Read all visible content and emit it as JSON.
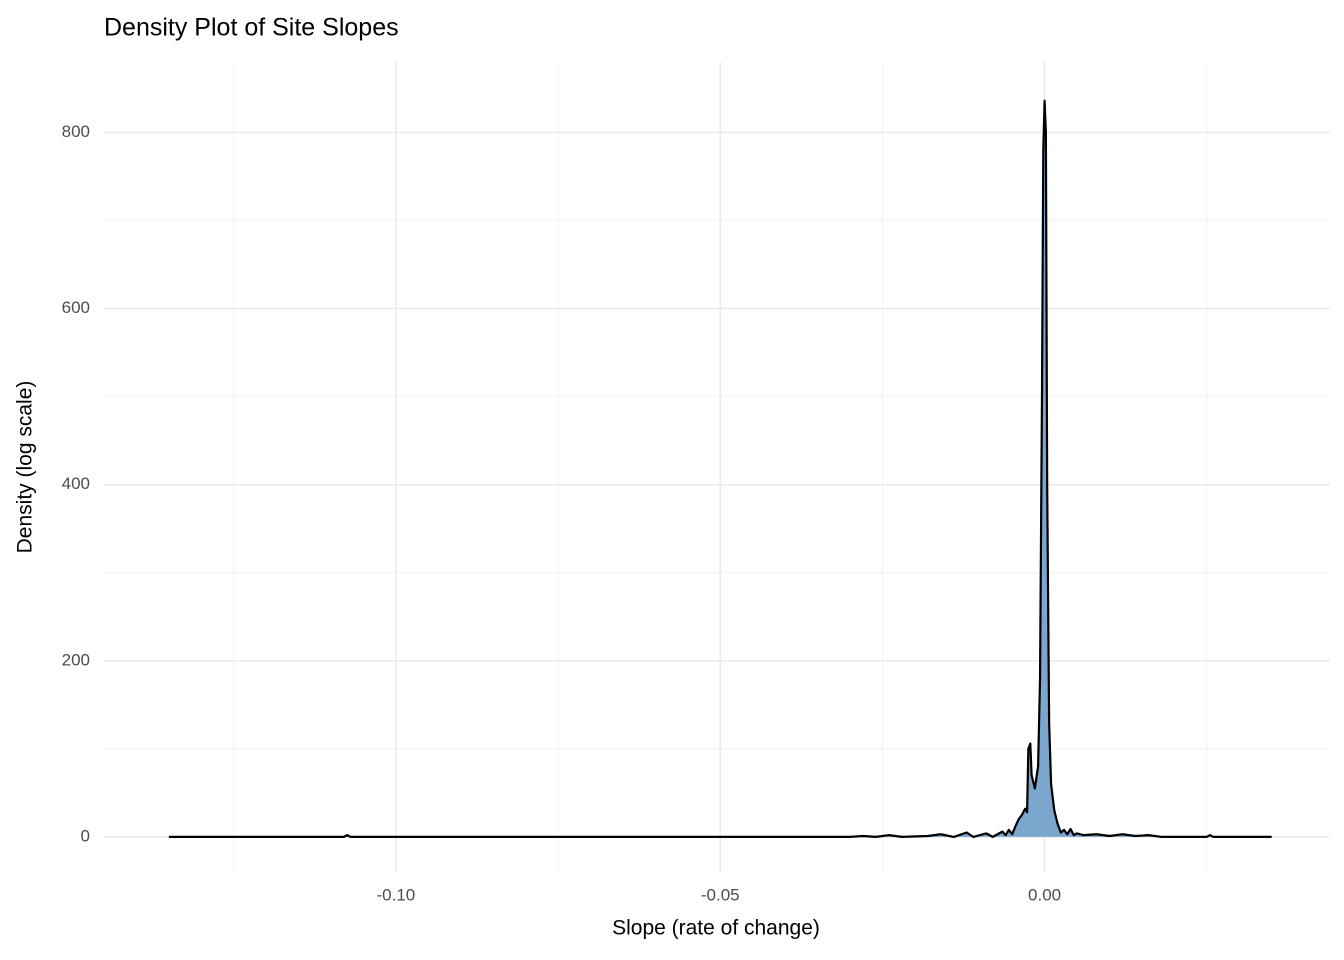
{
  "chart_data": {
    "type": "density",
    "title": "Density Plot of Site Slopes",
    "x_label": "Slope (rate of change)",
    "y_label": "Density (log scale)",
    "x": [
      -0.135,
      -0.108,
      -0.1075,
      -0.107,
      -0.03,
      -0.028,
      -0.026,
      -0.024,
      -0.022,
      -0.018,
      -0.016,
      -0.014,
      -0.012,
      -0.011,
      -0.009,
      -0.008,
      -0.0065,
      -0.006,
      -0.0055,
      -0.005,
      -0.0045,
      -0.004,
      -0.0035,
      -0.003,
      -0.0027,
      -0.0025,
      -0.0022,
      -0.002,
      -0.0015,
      -0.001,
      -0.0007,
      -0.0004,
      -0.0002,
      0,
      0.0002,
      0.0004,
      0.0007,
      0.001,
      0.0015,
      0.002,
      0.0025,
      0.003,
      0.0035,
      0.004,
      0.0045,
      0.005,
      0.006,
      0.008,
      0.01,
      0.012,
      0.014,
      0.016,
      0.018,
      0.025,
      0.0255,
      0.026,
      0.035
    ],
    "values": [
      0,
      0,
      2,
      0,
      0,
      1,
      0,
      2,
      0,
      1,
      3,
      0,
      5,
      0,
      4,
      0,
      6,
      2,
      8,
      3,
      12,
      20,
      25,
      32,
      28,
      100,
      106,
      70,
      55,
      80,
      180,
      500,
      780,
      836,
      800,
      400,
      130,
      60,
      30,
      15,
      5,
      8,
      3,
      9,
      2,
      4,
      2,
      3,
      1,
      3,
      1,
      2,
      0,
      0,
      2,
      0,
      0
    ],
    "fill_color": "#7ba7cf",
    "line_color": "#000000",
    "xlim": [
      -0.145,
      0.044
    ],
    "ylim": [
      -41,
      880
    ],
    "xticks": [
      {
        "value": -0.1,
        "label": "-0.10"
      },
      {
        "value": -0.05,
        "label": "-0.05"
      },
      {
        "value": 0,
        "label": "0.00"
      }
    ],
    "yticks": [
      0,
      200,
      400,
      600,
      800
    ],
    "x_minor_grid": [
      -0.125,
      -0.075,
      -0.025,
      0.025
    ],
    "y_minor_grid": [
      100,
      300,
      500,
      700
    ],
    "grid": true
  }
}
